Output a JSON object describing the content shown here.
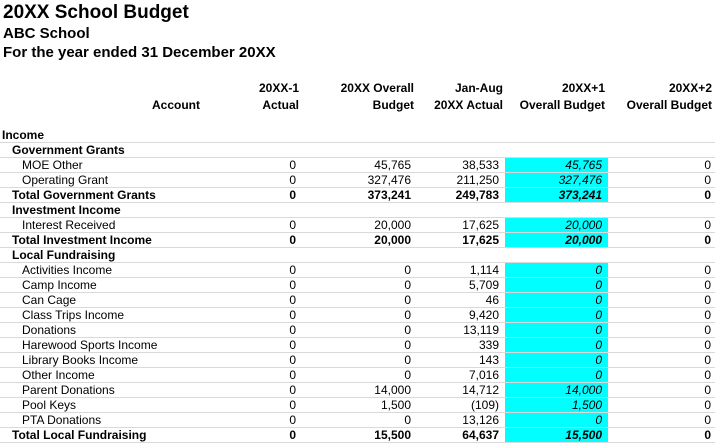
{
  "title": "20XX School Budget",
  "school": "ABC School",
  "period": "For the year ended 31 December 20XX",
  "columns": {
    "account": "Account",
    "c1a": "20XX-1",
    "c1b": "Actual",
    "c2a": "20XX Overall",
    "c2b": "Budget",
    "c3a": "Jan-Aug",
    "c3b": "20XX Actual",
    "c4a": "20XX+1",
    "c4b": "Overall Budget",
    "c5a": "20XX+2",
    "c5b": "Overall Budget"
  },
  "highlight_color": "#00ffff",
  "rows": [
    {
      "label": "Income",
      "kind": "section0",
      "values": [
        "",
        "",
        "",
        "",
        ""
      ]
    },
    {
      "label": "Government Grants",
      "kind": "section1",
      "values": [
        "",
        "",
        "",
        "",
        ""
      ]
    },
    {
      "label": "MOE Other",
      "kind": "item",
      "values": [
        "0",
        "45,765",
        "38,533",
        "45,765",
        "0"
      ]
    },
    {
      "label": "Operating Grant",
      "kind": "item",
      "values": [
        "0",
        "327,476",
        "211,250",
        "327,476",
        "0"
      ]
    },
    {
      "label": "Total Government Grants",
      "kind": "total",
      "values": [
        "0",
        "373,241",
        "249,783",
        "373,241",
        "0"
      ]
    },
    {
      "label": "Investment Income",
      "kind": "section1",
      "values": [
        "",
        "",
        "",
        "",
        ""
      ]
    },
    {
      "label": "Interest Received",
      "kind": "item",
      "values": [
        "0",
        "20,000",
        "17,625",
        "20,000",
        "0"
      ]
    },
    {
      "label": "Total Investment Income",
      "kind": "total",
      "values": [
        "0",
        "20,000",
        "17,625",
        "20,000",
        "0"
      ]
    },
    {
      "label": "Local Fundraising",
      "kind": "section1",
      "values": [
        "",
        "",
        "",
        "",
        ""
      ]
    },
    {
      "label": "Activities Income",
      "kind": "item",
      "values": [
        "0",
        "0",
        "1,114",
        "0",
        "0"
      ]
    },
    {
      "label": "Camp Income",
      "kind": "item",
      "values": [
        "0",
        "0",
        "5,709",
        "0",
        "0"
      ]
    },
    {
      "label": "Can Cage",
      "kind": "item",
      "values": [
        "0",
        "0",
        "46",
        "0",
        "0"
      ]
    },
    {
      "label": "Class Trips Income",
      "kind": "item",
      "values": [
        "0",
        "0",
        "9,420",
        "0",
        "0"
      ]
    },
    {
      "label": "Donations",
      "kind": "item",
      "values": [
        "0",
        "0",
        "13,119",
        "0",
        "0"
      ]
    },
    {
      "label": "Harewood Sports Income",
      "kind": "item",
      "values": [
        "0",
        "0",
        "339",
        "0",
        "0"
      ]
    },
    {
      "label": "Library Books Income",
      "kind": "item",
      "values": [
        "0",
        "0",
        "143",
        "0",
        "0"
      ]
    },
    {
      "label": "Other Income",
      "kind": "item",
      "values": [
        "0",
        "0",
        "7,016",
        "0",
        "0"
      ]
    },
    {
      "label": "Parent Donations",
      "kind": "item",
      "values": [
        "0",
        "14,000",
        "14,712",
        "14,000",
        "0"
      ]
    },
    {
      "label": "Pool Keys",
      "kind": "item",
      "values": [
        "0",
        "1,500",
        "(109)",
        "1,500",
        "0"
      ]
    },
    {
      "label": "PTA Donations",
      "kind": "item",
      "values": [
        "0",
        "0",
        "13,126",
        "0",
        "0"
      ]
    },
    {
      "label": "Total Local Fundraising",
      "kind": "total",
      "values": [
        "0",
        "15,500",
        "64,637",
        "15,500",
        "0"
      ]
    }
  ]
}
